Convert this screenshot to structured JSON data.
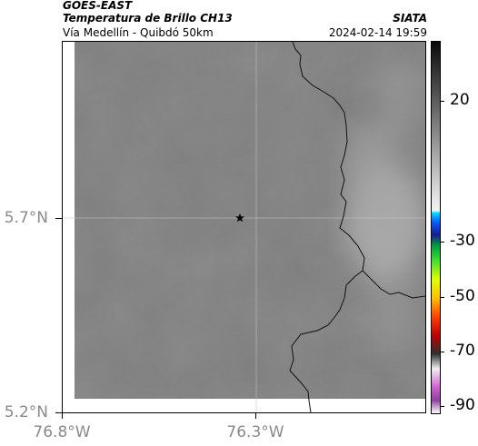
{
  "header": {
    "satellite": "GOES-EAST",
    "product": "Temperatura de Brillo CH13",
    "route": "Vía Medellín - Quibdó 50km",
    "organization": "SIATA",
    "timestamp": "2024-02-14 19:59"
  },
  "map": {
    "latitude_labels": [
      "5.7°N",
      "5.2°N"
    ],
    "longitude_labels": [
      "76.8°W",
      "76.3°W"
    ],
    "marker": "star-marker",
    "background_color": "#8b8b8b"
  },
  "colorbar": {
    "tick_labels": [
      "20",
      "-30",
      "-50",
      "-70",
      "-90"
    ]
  },
  "colors": {
    "frame": "#000000",
    "tick_label": "#8a8a8a"
  }
}
